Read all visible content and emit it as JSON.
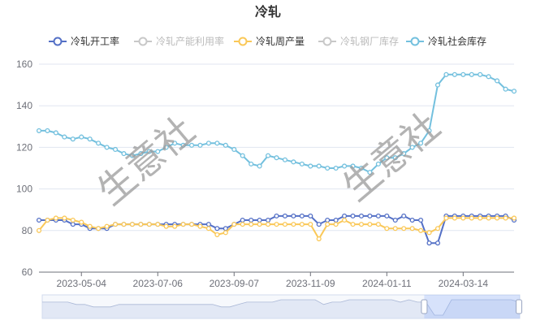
{
  "chart_data": {
    "type": "line",
    "title": "冷轧",
    "watermark": "生意社",
    "xlabel": "",
    "ylabel": "",
    "ylim": [
      60,
      160
    ],
    "yticks": [
      "60",
      "80",
      "100",
      "120",
      "140",
      "160"
    ],
    "x_tick_labels": [
      "2023-05-04",
      "2023-07-06",
      "2023-09-07",
      "2023-11-09",
      "2024-01-11",
      "2024-03-14"
    ],
    "grid": true,
    "legend_position": "top-center",
    "dataZoom": {
      "start": 0.8,
      "end": 1.0
    },
    "series": [
      {
        "name": "冷轧开工率",
        "color": "#5470c6",
        "active": true,
        "values": [
          85,
          85,
          85,
          85,
          83,
          83,
          81,
          81,
          81,
          83,
          83,
          83,
          83,
          83,
          83,
          83,
          83,
          83,
          83,
          83,
          83,
          81,
          81,
          83,
          85,
          85,
          85,
          85,
          87,
          87,
          87,
          87,
          87,
          83,
          85,
          85,
          87,
          87,
          87,
          87,
          87,
          87,
          85,
          87,
          85,
          85,
          74,
          74,
          87,
          87,
          87,
          87,
          87,
          87,
          87,
          87,
          85
        ]
      },
      {
        "name": "冷轧产能利用率",
        "color": "#c0c0c0",
        "active": false,
        "values": []
      },
      {
        "name": "冷轧周产量",
        "color": "#fac858",
        "active": true,
        "values": [
          80,
          85,
          86,
          86,
          85,
          84,
          82,
          81,
          82,
          83,
          83,
          83,
          83,
          83,
          83,
          82,
          82,
          83,
          83,
          82,
          81,
          78,
          79,
          83,
          83,
          83,
          83,
          83,
          83,
          83,
          83,
          83,
          83,
          76,
          83,
          83,
          85,
          83,
          83,
          83,
          83,
          81,
          81,
          81,
          81,
          80,
          79,
          81,
          86,
          86,
          86,
          86,
          86,
          86,
          86,
          86,
          86
        ]
      },
      {
        "name": "冷轧钢厂库存",
        "color": "#c0c0c0",
        "active": false,
        "values": []
      },
      {
        "name": "冷轧社会库存",
        "color": "#73c0de",
        "active": true,
        "values": [
          128,
          128,
          127,
          125,
          124,
          125,
          124,
          122,
          120,
          119,
          117,
          116,
          117,
          118,
          118,
          120,
          122,
          121,
          121,
          121,
          122,
          122,
          121,
          119,
          116,
          112,
          111,
          116,
          115,
          114,
          113,
          112,
          111,
          111,
          110,
          110,
          111,
          111,
          110,
          108,
          112,
          115,
          115,
          117,
          120,
          122,
          128,
          150,
          155,
          155,
          155,
          155,
          155,
          154,
          152,
          148,
          147
        ]
      }
    ]
  }
}
